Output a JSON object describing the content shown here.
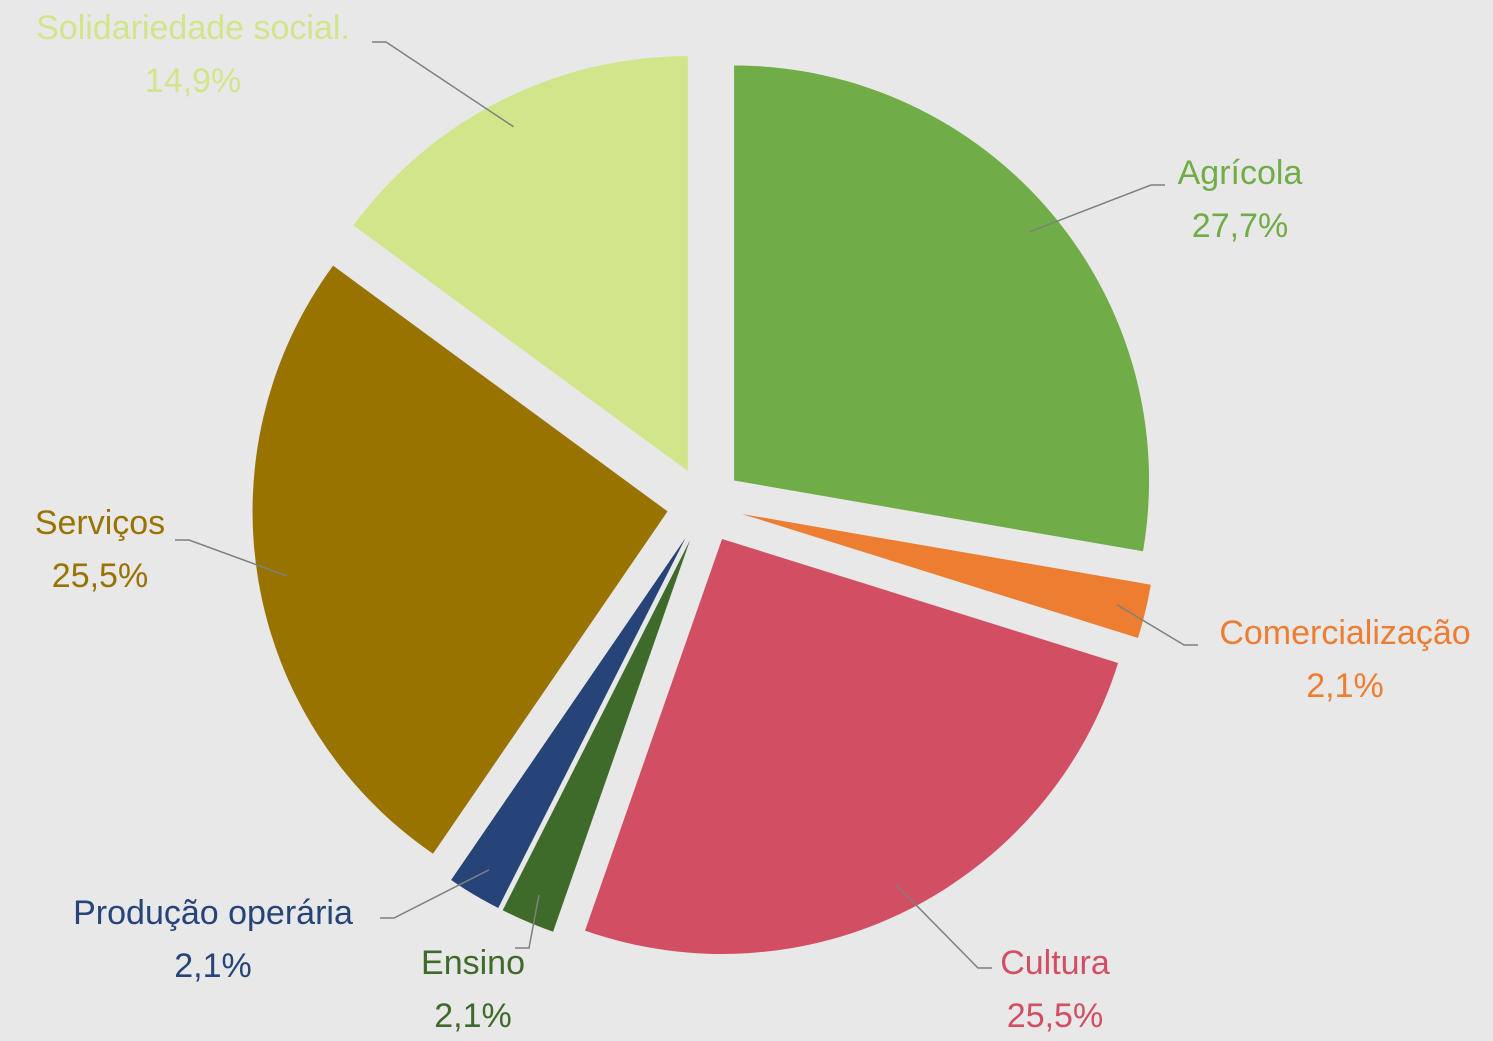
{
  "chart_data": {
    "type": "pie",
    "categories": [
      "Agrícola",
      "Comercialização",
      "Cultura",
      "Ensino",
      "Produção operária",
      "Serviços",
      "Solidariedade social."
    ],
    "values": [
      27.7,
      2.1,
      25.5,
      2.1,
      2.1,
      25.5,
      14.9
    ],
    "value_labels": [
      "27,7%",
      "2,1%",
      "25,5%",
      "2,1%",
      "2,1%",
      "25,5%",
      "14,9%"
    ],
    "colors": [
      "#70ad47",
      "#ed7d31",
      "#d24f63",
      "#3f6b2a",
      "#264478",
      "#997300",
      "#d1e58a"
    ],
    "exploded": true
  }
}
